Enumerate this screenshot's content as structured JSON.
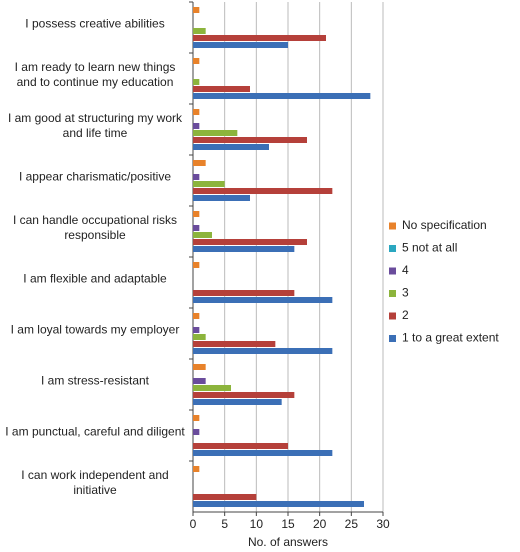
{
  "chart_data": {
    "type": "barh",
    "categories": [
      "I possess creative abilities",
      "I am ready to learn new things and to continue my education",
      "I am good at structuring my work and life time",
      "I appear charismatic/positive",
      "I can handle occupational risks responsible",
      "I am flexible and adaptable",
      "I am loyal towards my employer",
      "I am stress-resistant",
      "I am punctual, careful and diligent",
      "I can work independent and initiative"
    ],
    "series": [
      {
        "name": "No specification",
        "color": "#e8822a",
        "values": [
          1,
          1,
          1,
          2,
          1,
          1,
          1,
          2,
          1,
          1
        ]
      },
      {
        "name": "5 not at all",
        "color": "#2aa7c0",
        "values": [
          0,
          0,
          0,
          0,
          0,
          0,
          0,
          0,
          0,
          0
        ]
      },
      {
        "name": "4",
        "color": "#6a4c9c",
        "values": [
          0,
          0,
          1,
          1,
          1,
          0,
          1,
          2,
          1,
          0
        ]
      },
      {
        "name": "3",
        "color": "#8cb43c",
        "values": [
          2,
          1,
          7,
          5,
          3,
          0,
          2,
          6,
          0,
          0
        ]
      },
      {
        "name": "2",
        "color": "#b5403a",
        "values": [
          21,
          9,
          18,
          22,
          18,
          16,
          13,
          16,
          15,
          10
        ]
      },
      {
        "name": "1 to a great extent",
        "color": "#3b6fb6",
        "values": [
          15,
          28,
          12,
          9,
          16,
          22,
          22,
          14,
          22,
          27
        ]
      }
    ],
    "xlabel": "No. of answers",
    "xlim": [
      0,
      30
    ],
    "xticks": [
      0,
      5,
      10,
      15,
      20,
      25,
      30
    ],
    "grid": true
  }
}
